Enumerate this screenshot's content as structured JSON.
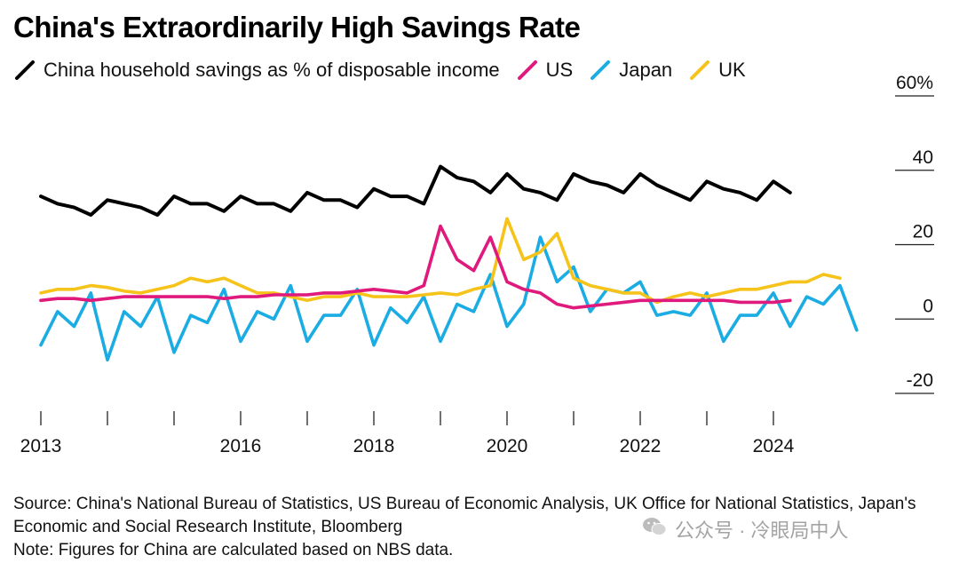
{
  "title": "China's Extraordinarily High Savings Rate",
  "legend": {
    "china": {
      "label": "China household savings as % of disposable income",
      "color": "#000000"
    },
    "us": {
      "label": "US",
      "color": "#e0197d"
    },
    "japan": {
      "label": "Japan",
      "color": "#1aace2"
    },
    "uk": {
      "label": "UK",
      "color": "#f6c31b"
    }
  },
  "chart_data": {
    "type": "line",
    "title": "China's Extraordinarily High Savings Rate",
    "xlabel": "",
    "ylabel": "",
    "xlim": [
      2013.0,
      2026.0
    ],
    "ylim": [
      -20,
      60
    ],
    "y_ticks": [
      60,
      40,
      20,
      0,
      -20
    ],
    "y_tick_labels": [
      "60%",
      "40",
      "20",
      "0",
      "-20"
    ],
    "x_ticks": [
      2013,
      2016,
      2018,
      2020,
      2022,
      2024
    ],
    "x_minor_ticks": [
      2013,
      2014,
      2015,
      2016,
      2017,
      2018,
      2019,
      2020,
      2021,
      2022,
      2023,
      2024
    ],
    "grid": false,
    "legend_position": "top-left",
    "quarters_start": 2013.0,
    "quarter_step": 0.25,
    "series": [
      {
        "name": "China household savings as % of disposable income",
        "key": "china",
        "color": "#000000",
        "values": [
          33,
          31,
          30,
          28,
          32,
          31,
          30,
          28,
          33,
          31,
          31,
          29,
          33,
          31,
          31,
          29,
          34,
          32,
          32,
          30,
          35,
          33,
          33,
          31,
          41,
          38,
          37,
          34,
          39,
          35,
          34,
          32,
          39,
          37,
          36,
          34,
          39,
          36,
          34,
          32,
          37,
          35,
          34,
          32,
          37,
          34
        ]
      },
      {
        "name": "US",
        "key": "us",
        "color": "#e0197d",
        "values": [
          5,
          5.5,
          5.5,
          5,
          5.5,
          6,
          6,
          6,
          6,
          6,
          6,
          5.5,
          6,
          6,
          6.5,
          6.5,
          6.5,
          7,
          7,
          7.5,
          8,
          7.5,
          7,
          9,
          25,
          16,
          13,
          22,
          10,
          8,
          7,
          4,
          3,
          3.5,
          4,
          4.5,
          5,
          5,
          5,
          5,
          5,
          5,
          4.5,
          4.5,
          4.5,
          5
        ]
      },
      {
        "name": "Japan",
        "key": "japan",
        "color": "#1aace2",
        "values": [
          -7,
          2,
          -2,
          7,
          -11,
          2,
          -2,
          6,
          -9,
          1,
          -1,
          8,
          -6,
          2,
          0,
          9,
          -6,
          1,
          1,
          8,
          -7,
          3,
          -1,
          6,
          -6,
          4,
          2,
          12,
          -2,
          4,
          22,
          10,
          14,
          2,
          8,
          7,
          10,
          1,
          2,
          1,
          7,
          -6,
          1,
          1,
          7,
          -2,
          6,
          4,
          9,
          -3
        ]
      },
      {
        "name": "UK",
        "key": "uk",
        "color": "#f6c31b",
        "values": [
          7,
          8,
          8,
          9,
          8.5,
          7.5,
          7,
          8,
          9,
          11,
          10,
          11,
          9,
          7,
          7,
          6,
          5,
          6,
          6,
          7,
          6,
          6,
          6,
          6.5,
          7,
          6.5,
          8,
          9,
          27,
          16,
          18,
          23,
          11,
          9,
          8,
          7,
          7,
          4.5,
          6,
          7,
          6,
          7,
          8,
          8,
          9,
          10,
          10,
          12,
          11
        ]
      }
    ]
  },
  "footer": {
    "source": "Source: China's National Bureau of Statistics, US Bureau of Economic Analysis, UK Office for National Statistics, Japan's Economic and Social Research Institute, Bloomberg",
    "note": "Note: Figures for China are calculated based on NBS data."
  },
  "watermark": "公众号 · 冷眼局中人"
}
